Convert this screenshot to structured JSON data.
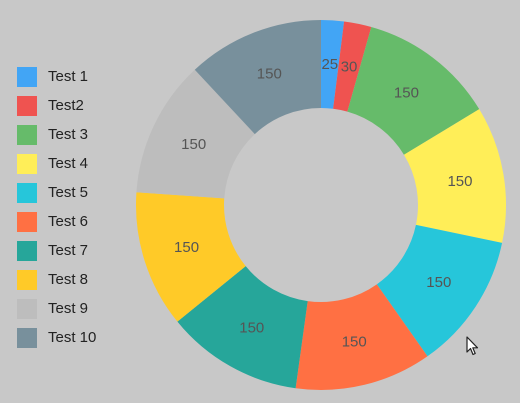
{
  "chart_data": {
    "type": "pie",
    "categories": [
      "Test 1",
      "Test2",
      "Test 3",
      "Test 4",
      "Test 5",
      "Test 6",
      "Test 7",
      "Test 8",
      "Test 9",
      "Test 10"
    ],
    "values": [
      25,
      30,
      150,
      150,
      150,
      150,
      150,
      150,
      150,
      150
    ],
    "colors": [
      "#42a5f5",
      "#ef5350",
      "#66bb6a",
      "#ffee58",
      "#26c6da",
      "#ff7043",
      "#26a69a",
      "#ffca28",
      "#bdbdbd",
      "#78909c"
    ],
    "legend_position": "left",
    "donut": true
  },
  "cursor": {
    "icon": "mouse-pointer-icon"
  }
}
